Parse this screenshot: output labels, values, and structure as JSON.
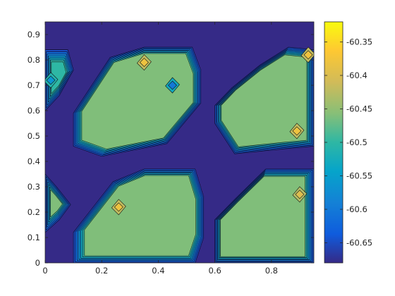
{
  "chart_data": {
    "type": "contour",
    "title": "",
    "xlabel": "",
    "ylabel": "",
    "xlim": [
      0,
      0.95
    ],
    "ylim": [
      0,
      0.95
    ],
    "x_ticks": [
      "0",
      "0.2",
      "0.4",
      "0.6",
      "0.8"
    ],
    "y_ticks": [
      "0",
      "0.1",
      "0.2",
      "0.3",
      "0.4",
      "0.5",
      "0.6",
      "0.7",
      "0.8",
      "0.9"
    ],
    "colorbar": {
      "range": [
        -60.68,
        -60.32
      ],
      "ticks": [
        "-60.35",
        "-60.4",
        "-60.45",
        "-60.5",
        "-60.55",
        "-60.6",
        "-60.65"
      ],
      "colormap": "parula"
    },
    "background_level": -60.67,
    "plateau_level": -60.46,
    "regions": [
      {
        "name": "upper-left island",
        "level": -60.46,
        "outline": [
          [
            0.1,
            0.46
          ],
          [
            0.1,
            0.59
          ],
          [
            0.23,
            0.81
          ],
          [
            0.35,
            0.85
          ],
          [
            0.52,
            0.85
          ],
          [
            0.55,
            0.76
          ],
          [
            0.55,
            0.63
          ],
          [
            0.43,
            0.47
          ],
          [
            0.2,
            0.42
          ]
        ]
      },
      {
        "name": "upper-right island",
        "level": -60.46,
        "outline": [
          [
            0.6,
            0.55
          ],
          [
            0.67,
            0.43
          ],
          [
            0.85,
            0.45
          ],
          [
            0.95,
            0.46
          ],
          [
            0.95,
            0.84
          ],
          [
            0.86,
            0.85
          ],
          [
            0.76,
            0.78
          ],
          [
            0.66,
            0.69
          ],
          [
            0.6,
            0.62
          ]
        ]
      },
      {
        "name": "lower-left island",
        "level": -60.46,
        "outline": [
          [
            0.1,
            0.0
          ],
          [
            0.1,
            0.12
          ],
          [
            0.24,
            0.32
          ],
          [
            0.35,
            0.37
          ],
          [
            0.53,
            0.37
          ],
          [
            0.56,
            0.26
          ],
          [
            0.56,
            0.1
          ],
          [
            0.53,
            0.0
          ]
        ]
      },
      {
        "name": "lower-right island",
        "level": -60.46,
        "outline": [
          [
            0.6,
            0.03
          ],
          [
            0.6,
            0.17
          ],
          [
            0.67,
            0.25
          ],
          [
            0.78,
            0.37
          ],
          [
            0.95,
            0.37
          ],
          [
            0.95,
            0.0
          ],
          [
            0.6,
            0.0
          ]
        ]
      },
      {
        "name": "left-edge lobe top",
        "level": -60.5,
        "outline": [
          [
            0.0,
            0.6
          ],
          [
            0.0,
            0.84
          ],
          [
            0.08,
            0.84
          ],
          [
            0.1,
            0.76
          ],
          [
            0.05,
            0.66
          ]
        ]
      },
      {
        "name": "left-edge lobe bottom",
        "level": -60.46,
        "outline": [
          [
            0.0,
            0.12
          ],
          [
            0.0,
            0.35
          ],
          [
            0.04,
            0.3
          ],
          [
            0.09,
            0.23
          ],
          [
            0.05,
            0.17
          ]
        ]
      }
    ],
    "spots": [
      {
        "name": "dip upper-left",
        "x": 0.45,
        "y": 0.7,
        "level": -60.6
      },
      {
        "name": "low spot left edge",
        "x": 0.02,
        "y": 0.72,
        "level": -60.56
      },
      {
        "name": "peak upper-left",
        "x": 0.35,
        "y": 0.79,
        "level": -60.38
      },
      {
        "name": "peak upper-right",
        "x": 0.93,
        "y": 0.82,
        "level": -60.38
      },
      {
        "name": "peak upper-right inner",
        "x": 0.89,
        "y": 0.52,
        "level": -60.38
      },
      {
        "name": "peak lower-left",
        "x": 0.26,
        "y": 0.22,
        "level": -60.38
      },
      {
        "name": "peak lower-right",
        "x": 0.9,
        "y": 0.27,
        "level": -60.4
      }
    ]
  }
}
